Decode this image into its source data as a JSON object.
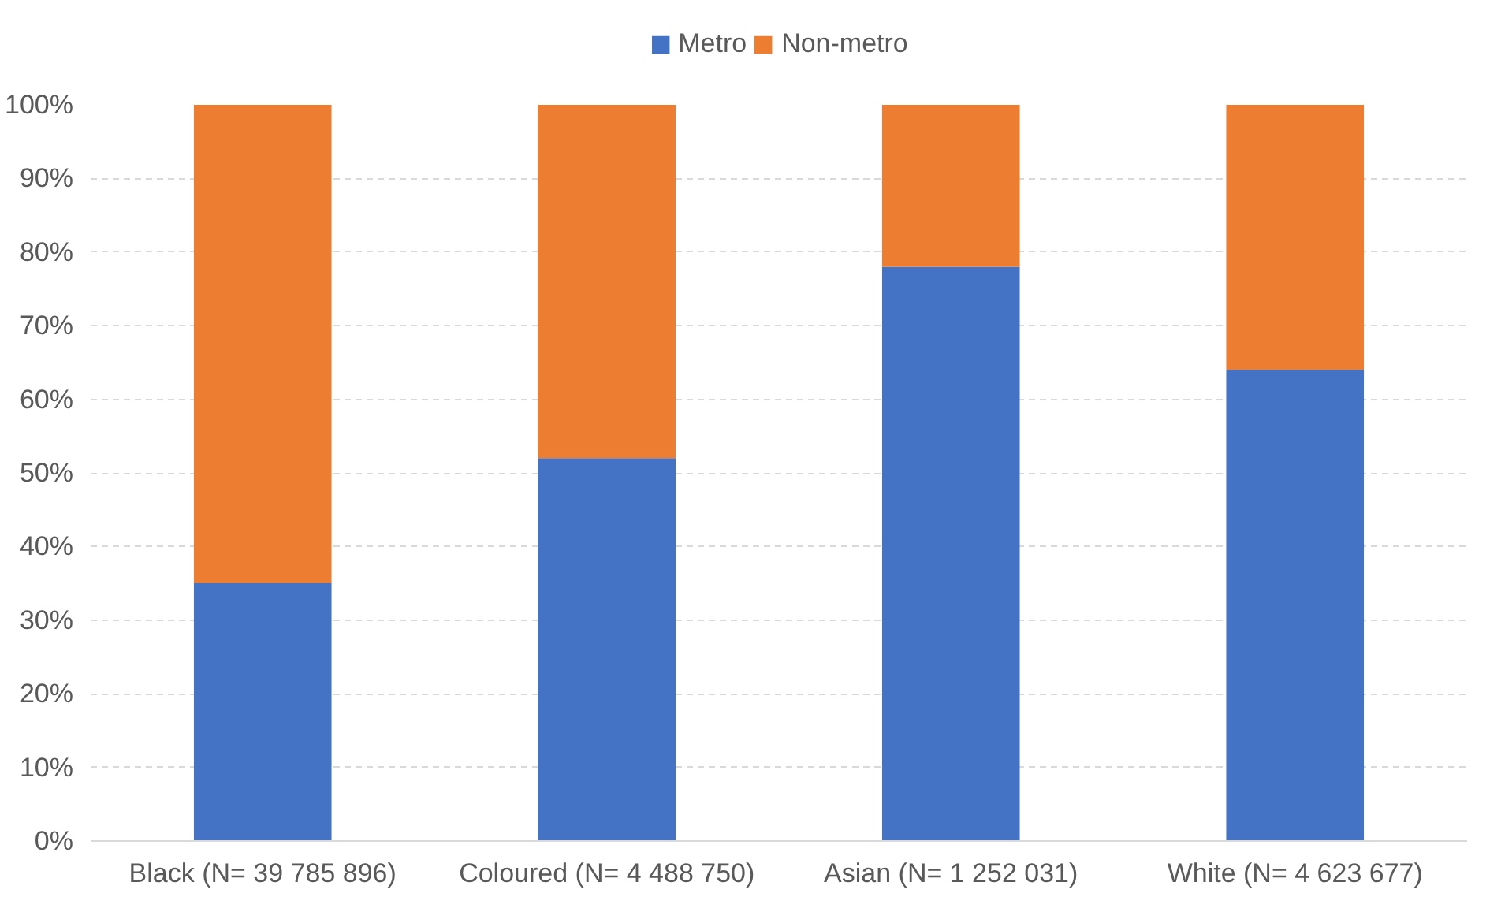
{
  "chart_data": {
    "type": "bar",
    "stacked": true,
    "categories": [
      "Black (N= 39 785 896)",
      "Coloured (N= 4 488 750)",
      "Asian (N= 1 252 031)",
      "White (N= 4 623 677)"
    ],
    "series": [
      {
        "name": "Metro",
        "color": "#4472c4",
        "values": [
          35,
          52,
          78,
          64
        ]
      },
      {
        "name": "Non-metro",
        "color": "#ed7d31",
        "values": [
          65,
          48,
          22,
          36
        ]
      }
    ],
    "ylim": [
      0,
      100
    ],
    "yticks": [
      {
        "value": 0,
        "label": "0%"
      },
      {
        "value": 10,
        "label": "10%"
      },
      {
        "value": 20,
        "label": "20%"
      },
      {
        "value": 30,
        "label": "30%"
      },
      {
        "value": 40,
        "label": "40%"
      },
      {
        "value": 50,
        "label": "50%"
      },
      {
        "value": 60,
        "label": "60%"
      },
      {
        "value": 70,
        "label": "70%"
      },
      {
        "value": 80,
        "label": "80%"
      },
      {
        "value": 90,
        "label": "90%"
      },
      {
        "value": 100,
        "label": "100%"
      }
    ],
    "grid": "y",
    "legend": "top"
  }
}
